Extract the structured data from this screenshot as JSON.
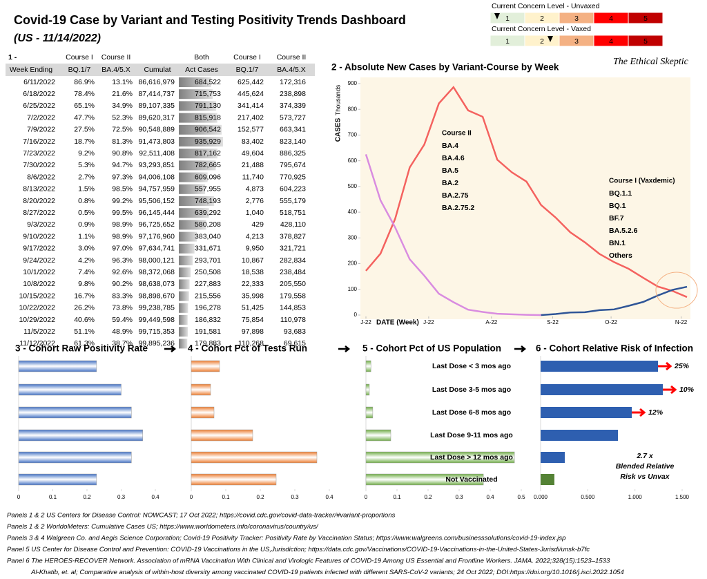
{
  "header": {
    "title": "Covid-19 Case by Variant and Testing Positivity Trends Dashboard",
    "subtitle": "(US - 11/14/2022)",
    "brand": "The Ethical Skeptic"
  },
  "concern_levels": {
    "levels": [
      1,
      2,
      3,
      4,
      5
    ],
    "colors": [
      "#e2efda",
      "#fff2cc",
      "#f4b183",
      "#ff0000",
      "#c00000"
    ],
    "scale": [
      0,
      5
    ],
    "rows": [
      {
        "label": "Current Concern Level - Unvaxed",
        "marker": 0.2
      },
      {
        "label": "Current Concern Level - Vaxed",
        "marker": 1.74
      }
    ]
  },
  "table": {
    "panel": "1 -",
    "group_headers": [
      "Course I",
      "Course II",
      "Both",
      "Course I",
      "Course II"
    ],
    "columns": [
      "Week Ending",
      "BQ.1/7",
      "BA.4/5.X",
      "Cumulat",
      "Act Cases",
      "BQ.1/7",
      "BA.4/5.X"
    ],
    "rows": [
      [
        "6/11/2022",
        "86.9%",
        "13.1%",
        "86,616,979",
        "684,522",
        "625,442",
        "172,316"
      ],
      [
        "6/18/2022",
        "78.4%",
        "21.6%",
        "87,414,737",
        "715,753",
        "445,624",
        "238,898"
      ],
      [
        "6/25/2022",
        "65.1%",
        "34.9%",
        "89,107,335",
        "791,130",
        "341,414",
        "374,339"
      ],
      [
        "7/2/2022",
        "47.7%",
        "52.3%",
        "89,620,317",
        "815,918",
        "217,402",
        "573,727"
      ],
      [
        "7/9/2022",
        "27.5%",
        "72.5%",
        "90,548,889",
        "906,542",
        "152,577",
        "663,341"
      ],
      [
        "7/16/2022",
        "18.7%",
        "81.3%",
        "91,473,803",
        "935,929",
        "83,402",
        "823,140"
      ],
      [
        "7/23/2022",
        "9.2%",
        "90.8%",
        "92,511,408",
        "817,162",
        "49,604",
        "886,325"
      ],
      [
        "7/30/2022",
        "5.3%",
        "94.7%",
        "93,293,851",
        "782,665",
        "21,488",
        "795,674"
      ],
      [
        "8/6/2022",
        "2.7%",
        "97.3%",
        "94,006,108",
        "609,096",
        "11,740",
        "770,925"
      ],
      [
        "8/13/2022",
        "1.5%",
        "98.5%",
        "94,757,959",
        "557,955",
        "4,873",
        "604,223"
      ],
      [
        "8/20/2022",
        "0.8%",
        "99.2%",
        "95,506,152",
        "748,193",
        "2,776",
        "555,179"
      ],
      [
        "8/27/2022",
        "0.5%",
        "99.5%",
        "96,145,444",
        "639,292",
        "1,040",
        "518,751"
      ],
      [
        "9/3/2022",
        "0.9%",
        "98.9%",
        "96,725,652",
        "580,208",
        "429",
        "428,110"
      ],
      [
        "9/10/2022",
        "1.1%",
        "98.9%",
        "97,176,960",
        "383,040",
        "4,213",
        "378,827"
      ],
      [
        "9/17/2022",
        "3.0%",
        "97.0%",
        "97,634,741",
        "331,671",
        "9,950",
        "321,721"
      ],
      [
        "9/24/2022",
        "4.2%",
        "96.3%",
        "98,000,121",
        "293,701",
        "10,867",
        "282,834"
      ],
      [
        "10/1/2022",
        "7.4%",
        "92.6%",
        "98,372,068",
        "250,508",
        "18,538",
        "238,484"
      ],
      [
        "10/8/2022",
        "9.8%",
        "90.2%",
        "98,638,073",
        "227,883",
        "22,333",
        "205,550"
      ],
      [
        "10/15/2022",
        "16.7%",
        "83.3%",
        "98,898,670",
        "215,556",
        "35,998",
        "179,558"
      ],
      [
        "10/22/2022",
        "26.2%",
        "73.8%",
        "99,238,785",
        "196,278",
        "51,425",
        "144,853"
      ],
      [
        "10/29/2022",
        "40.6%",
        "59.4%",
        "99,449,598",
        "186,832",
        "75,854",
        "110,978"
      ],
      [
        "11/5/2022",
        "51.1%",
        "48.9%",
        "99,715,353",
        "191,581",
        "97,898",
        "93,683"
      ],
      [
        "11/12/2022",
        "61.3%",
        "38.7%",
        "99,895,236",
        "179,883",
        "110,268",
        "69,615"
      ]
    ]
  },
  "chart_data": [
    {
      "type": "line",
      "title": "2 - Absolute New Cases by Variant-Course  by Week",
      "y_label": "CASES",
      "y_unit": "Thousands",
      "x_label": "DATE (Week)",
      "ylim": [
        0,
        900
      ],
      "yticks": [
        0,
        100,
        200,
        300,
        400,
        500,
        600,
        700,
        800,
        900
      ],
      "xlim": [
        0,
        22
      ],
      "xticks": [
        {
          "value": 0,
          "label": "J-22"
        },
        {
          "value": 4.3,
          "label": "J-22"
        },
        {
          "value": 8.6,
          "label": "A-22"
        },
        {
          "value": 12.8,
          "label": "S-22"
        },
        {
          "value": 16.8,
          "label": "O-22"
        },
        {
          "value": 21.6,
          "label": "N-22"
        }
      ],
      "series": [
        {
          "name": "Course II",
          "color": "#f4625f",
          "variants": [
            "BA.4",
            "BA.4.6",
            "BA.5",
            "BA.2",
            "BA.2.75",
            "BA.2.75.2"
          ],
          "values": [
            172,
            239,
            374,
            574,
            663,
            823,
            886,
            796,
            771,
            604,
            555,
            519,
            428,
            379,
            322,
            283,
            238,
            206,
            180,
            145,
            111,
            94,
            70
          ]
        },
        {
          "name": "Course I (Vaxdemic)",
          "color": "#2f5597",
          "variants": [
            "BQ.1.1",
            "BQ.1",
            "BF.7",
            "BA.5.2.6",
            "BN.1",
            "Others"
          ],
          "colors": [
            "#d98ce0",
            "#d98ce0",
            "#d98ce0",
            "#d98ce0",
            "#d98ce0",
            "#d98ce0",
            "#d98ce0",
            "#d98ce0",
            "#d98ce0",
            "#d98ce0",
            "#d98ce0",
            "#d98ce0",
            "#d98ce0",
            "#2f5597",
            "#2f5597",
            "#2f5597",
            "#2f5597",
            "#2f5597",
            "#2f5597",
            "#2f5597",
            "#2f5597",
            "#2f5597",
            "#2f5597"
          ],
          "values": [
            625,
            446,
            341,
            217,
            153,
            83,
            50,
            21,
            12,
            5,
            3,
            1,
            0,
            4,
            10,
            11,
            19,
            22,
            36,
            51,
            76,
            98,
            110
          ]
        }
      ]
    },
    {
      "type": "hbar",
      "title": "3 - Cohort Raw Positivity Rate",
      "color": "#4472c4",
      "xlim": [
        0,
        0.4
      ],
      "xticks": [
        0,
        0.1,
        0.2,
        0.3,
        0.4
      ],
      "values": [
        0.228,
        0.3,
        0.33,
        0.363,
        0.33,
        0.228
      ]
    },
    {
      "type": "hbar",
      "title": "4 - Cohort Pct of Tests Run",
      "color": "#ed7d31",
      "xlim": [
        0,
        0.4
      ],
      "xticks": [
        0,
        0.1,
        0.2,
        0.3,
        0.4
      ],
      "values": [
        0.082,
        0.056,
        0.066,
        0.178,
        0.364,
        0.246
      ]
    },
    {
      "type": "hbar",
      "title": "5 - Cohort Pct of US Population",
      "color": "#70ad47",
      "xlim": [
        0,
        0.5
      ],
      "xticks": [
        0,
        0.1,
        0.2,
        0.3,
        0.4,
        0.5
      ],
      "categories": [
        "Last Dose < 3 mos ago",
        "Last Dose 3-5 mos ago",
        "Last Dose 6-8 mos ago",
        "Last Dose 9-11 mos ago",
        "Last Dose > 12 mos ago",
        "Not Vaccinated"
      ],
      "values": [
        0.016,
        0.011,
        0.022,
        0.08,
        0.478,
        0.378
      ]
    },
    {
      "type": "hbar",
      "title": "6 - Cohort Relative Risk of Infection",
      "colors": [
        "#2e5fb0",
        "#2e5fb0",
        "#2e5fb0",
        "#2e5fb0",
        "#2e5fb0",
        "#548235"
      ],
      "solid": true,
      "xlim": [
        0,
        1.5
      ],
      "xticks": [
        {
          "value": 0,
          "label": "0.000"
        },
        {
          "value": 0.5,
          "label": "0.500"
        },
        {
          "value": 1,
          "label": "1.000"
        },
        {
          "value": 1.5,
          "label": "1.500"
        }
      ],
      "values": [
        1.244,
        1.295,
        0.966,
        0.82,
        0.256,
        0.146
      ],
      "annotations": [
        "25%",
        "10%",
        "12%"
      ],
      "note": [
        "2.7 x",
        "Blended Relative",
        "Risk vs Unvax"
      ]
    }
  ],
  "footnotes": [
    "Panels 1 & 2  US Centers for Disease Control: NOWCAST; 17 Oct 2022; https://covid.cdc.gov/covid-data-tracker/#variant-proportions",
    "Panels 1 & 2  WorldoMeters: Cumulative Cases US; https://www.worldometers.info/coronavirus/country/us/",
    "Panels 3 & 4  Walgreen Co. and Aegis Science Corporation; Covid-19 Positivity Tracker: Positivity Rate by Vaccination Status; https://www.walgreens.com/businesssolutions/covid-19-index.jsp",
    "Panel 5  US Center for Disease Control and Prevention: COVID-19 Vaccinations in the US,Jurisdiction; https://data.cdc.gov/Vaccinations/COVID-19-Vaccinations-in-the-United-States-Jurisdi/unsk-b7fc",
    "Panel 6  The HEROES-RECOVER Network. Association of mRNA Vaccination With Clinical and Virologic Features of COVID-19 Among US Essential and Frontline Workers. JAMA. 2022;328(15):1523–1533",
    "Al-Khatib, et. al; Comparative analysis of within-host diversity among vaccinated COVID-19 patients infected with different SARS-CoV-2 variants; 24 Oct 2022; DOI:https://doi.org/10.1016/j.isci.2022.1054"
  ]
}
